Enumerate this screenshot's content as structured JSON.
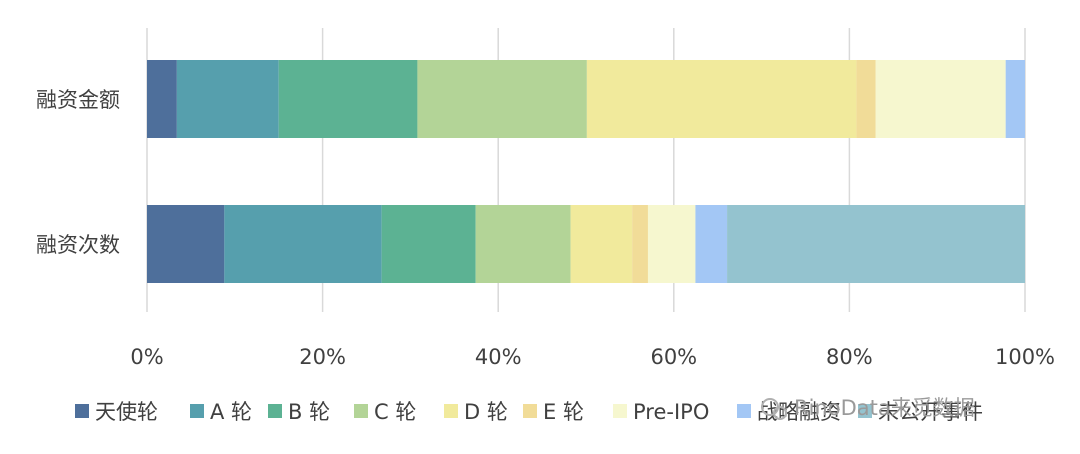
{
  "chart_data": {
    "type": "bar",
    "orientation": "horizontal",
    "stacked": "percent",
    "categories": [
      "融资金额",
      "融资次数"
    ],
    "series": [
      {
        "name": "天使轮",
        "color": "#4e6f9b",
        "values": [
          3.4,
          8.8
        ]
      },
      {
        "name": "A 轮",
        "color": "#569fad",
        "values": [
          11.6,
          17.9
        ]
      },
      {
        "name": "B 轮",
        "color": "#5cb293",
        "values": [
          15.8,
          10.7
        ]
      },
      {
        "name": "C 轮",
        "color": "#b3d497",
        "values": [
          19.3,
          10.8
        ]
      },
      {
        "name": "D 轮",
        "color": "#f1ea9c",
        "values": [
          30.7,
          7.0
        ]
      },
      {
        "name": "E 轮",
        "color": "#f1dc98",
        "values": [
          2.2,
          1.8
        ]
      },
      {
        "name": "Pre-IPO",
        "color": "#f6f7cf",
        "values": [
          14.8,
          5.4
        ]
      },
      {
        "name": "战略融资",
        "color": "#a3c7f5",
        "values": [
          2.2,
          3.6
        ]
      },
      {
        "name": "未公开事件",
        "color": "#94c3cf",
        "values": [
          0,
          33.9
        ]
      }
    ],
    "xlim": [
      0,
      100
    ],
    "xticks": [
      "0%",
      "20%",
      "40%",
      "60%",
      "80%",
      "100%"
    ],
    "grid": true,
    "legend_position": "bottom"
  },
  "watermark": {
    "text": "RinoData来觅数据"
  }
}
